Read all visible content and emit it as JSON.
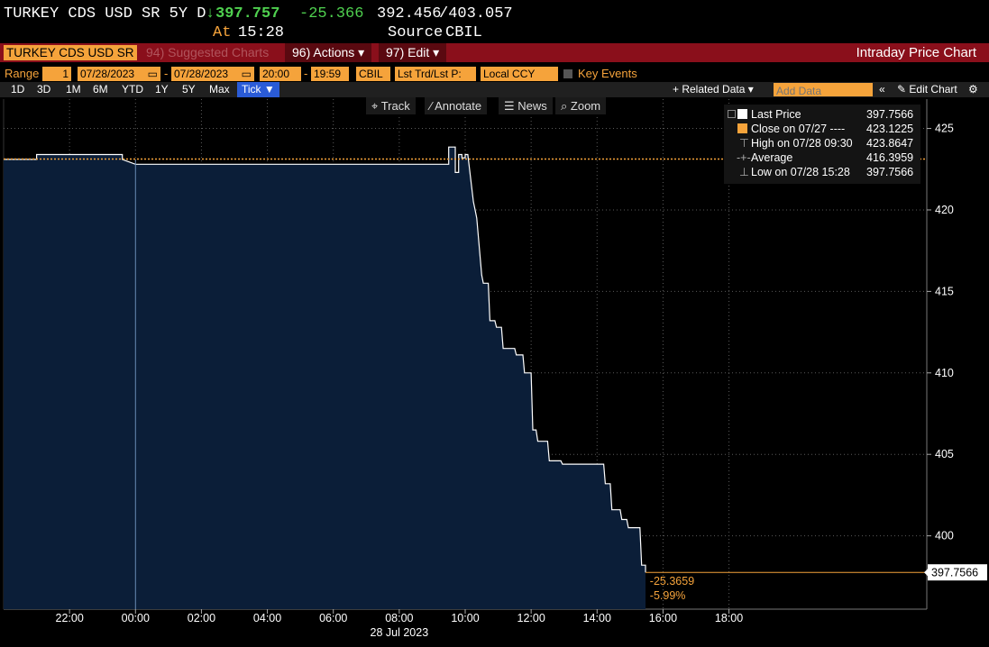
{
  "header": {
    "security": "TURKEY CDS USD SR 5Y D",
    "arrow": "↓",
    "last": "397.757",
    "change": "-25.366",
    "bid": "392.456",
    "ask": "/403.057",
    "at_label": "At",
    "time": "15:28",
    "source_label": "Source",
    "source": "CBIL"
  },
  "toolbar": {
    "ticker": "TURKEY CDS USD SR",
    "suggested": "94) Suggested Charts",
    "actions": "96) Actions ▾",
    "edit": "97) Edit ▾",
    "title": "Intraday Price Chart"
  },
  "range": {
    "label": "Range",
    "count": "1",
    "start_date": "07/28/2023",
    "dash": "-",
    "end_date": "07/28/2023",
    "start_time": "20:00",
    "end_time": "19:59",
    "source": "CBIL",
    "price_type": "Lst Trd/Lst P:",
    "currency": "Local CCY",
    "key_events": "Key Events"
  },
  "periods": [
    "1D",
    "3D",
    "1M",
    "6M",
    "YTD",
    "1Y",
    "5Y",
    "Max"
  ],
  "tick_button": "Tick ▼",
  "related_data": "+ Related Data ▾",
  "add_data_placeholder": "Add Data",
  "edit_chart": "✎ Edit Chart",
  "tools": [
    "⌖ Track",
    "⁄ Annotate",
    "☰ News",
    "⌕ Zoom"
  ],
  "legend": [
    {
      "label": "Last Price",
      "value": "397.7566",
      "marker": "square",
      "color": "#ffffff"
    },
    {
      "label": "Close on 07/27 ----",
      "value": "423.1225",
      "marker": "square",
      "color": "#f5a33b"
    },
    {
      "label": "High on 07/28 09:30",
      "value": "423.8647",
      "marker": "high",
      "color": "#bbbbbb"
    },
    {
      "label": "Average",
      "value": "416.3959",
      "marker": "avg",
      "color": "#bbbbbb"
    },
    {
      "label": "Low on 07/28 15:28",
      "value": "397.7566",
      "marker": "low",
      "color": "#bbbbbb"
    }
  ],
  "annotations": {
    "last_price_tag": "397.7566",
    "change_abs": "-25.3659",
    "change_pct": "-5.99%"
  },
  "colors": {
    "area_fill": "#0b1e38",
    "line": "#ffffff",
    "prev_close": "#f5a33b",
    "accent": "#f5a33b",
    "red_bar": "#8a0f1b",
    "up": "#4fd04f"
  },
  "chart_data": {
    "type": "area",
    "title": "Intraday Price Chart",
    "date_label": "28 Jul 2023",
    "x_ticks": [
      "22:00",
      "00:00",
      "02:00",
      "04:00",
      "06:00",
      "08:00",
      "10:00",
      "12:00",
      "14:00",
      "16:00",
      "18:00"
    ],
    "y_ticks": [
      400,
      405,
      410,
      415,
      420,
      425
    ],
    "ylim": [
      395.5,
      426.8
    ],
    "xlim_hours": [
      -4,
      24
    ],
    "x_unit": "hours relative to 28 Jul 2023 00:00",
    "prev_close": 423.1225,
    "series": [
      {
        "name": "Last Price",
        "x": [
          -4.0,
          -3.0,
          -3.0,
          -0.4,
          -0.4,
          0.0,
          9.5,
          9.5,
          9.7,
          9.7,
          9.8,
          9.8,
          9.9,
          9.9,
          10.0,
          10.0,
          10.08,
          10.25,
          10.3,
          10.35,
          10.5,
          10.55,
          10.7,
          10.75,
          10.9,
          10.95,
          11.1,
          11.15,
          11.5,
          11.55,
          11.75,
          11.8,
          12.0,
          12.05,
          12.15,
          12.2,
          12.5,
          12.55,
          12.9,
          12.95,
          13.0,
          14.2,
          14.25,
          14.4,
          14.45,
          14.7,
          14.75,
          14.9,
          14.95,
          15.3,
          15.35,
          15.47,
          15.47
        ],
        "y": [
          423.1,
          423.1,
          423.4,
          423.4,
          423.1,
          422.8,
          422.8,
          423.86,
          423.86,
          422.3,
          422.3,
          423.4,
          423.4,
          423.2,
          423.2,
          423.4,
          423.4,
          420.5,
          420.0,
          419.5,
          416.0,
          415.5,
          415.5,
          413.2,
          413.2,
          412.8,
          412.8,
          411.5,
          411.5,
          411.1,
          411.1,
          410.0,
          410.0,
          406.5,
          406.5,
          405.8,
          405.8,
          404.6,
          404.6,
          404.4,
          404.4,
          404.4,
          403.2,
          403.2,
          401.6,
          401.6,
          401.0,
          401.0,
          400.5,
          400.5,
          398.2,
          398.2,
          397.7566
        ]
      }
    ],
    "last_value_extension_to": 24.0,
    "grid": true,
    "legend_position": "top-right"
  }
}
